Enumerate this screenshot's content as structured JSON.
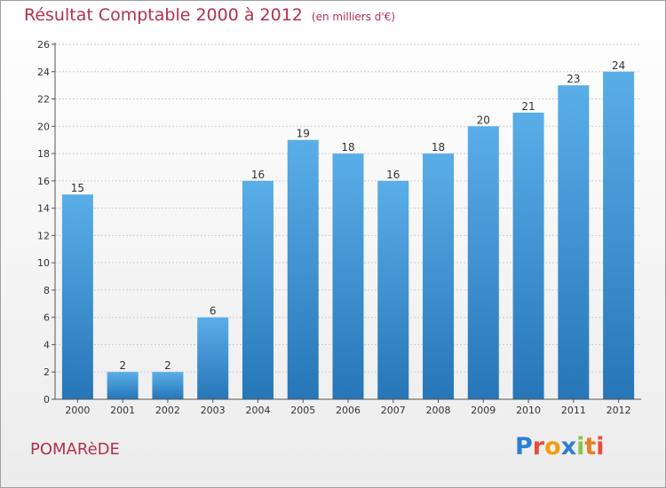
{
  "header": {
    "title": "Résultat Comptable 2000 à 2012",
    "subtitle": "(en milliers d'€)"
  },
  "footer": {
    "place": "POMARèDE",
    "logo_letters": [
      "P",
      "r",
      "o",
      "x",
      "i",
      "t",
      "i"
    ],
    "logo_colors": [
      "#2a7fd4",
      "#e74c3c",
      "#f39c12",
      "#2a7fd4",
      "#8bc34a",
      "#e67e22",
      "#e74c3c"
    ]
  },
  "colors": {
    "bar_top": "#5aaee8",
    "bar_bottom": "#2676b8",
    "grid": "#cccccc",
    "title": "#b5304e"
  },
  "chart_data": {
    "type": "bar",
    "title": "Résultat Comptable 2000 à 2012",
    "subtitle": "(en milliers d'€)",
    "xlabel": "",
    "ylabel": "",
    "categories": [
      "2000",
      "2001",
      "2002",
      "2003",
      "2004",
      "2005",
      "2006",
      "2007",
      "2008",
      "2009",
      "2010",
      "2011",
      "2012"
    ],
    "values": [
      15,
      2,
      2,
      6,
      16,
      19,
      18,
      16,
      18,
      20,
      21,
      23,
      24
    ],
    "ylim": [
      0,
      26
    ],
    "yticks": [
      "0",
      "2",
      "4",
      "6",
      "8",
      "10",
      "12",
      "14",
      "16",
      "18",
      "20",
      "22",
      "24",
      "26"
    ],
    "grid": true,
    "legend": "none"
  }
}
